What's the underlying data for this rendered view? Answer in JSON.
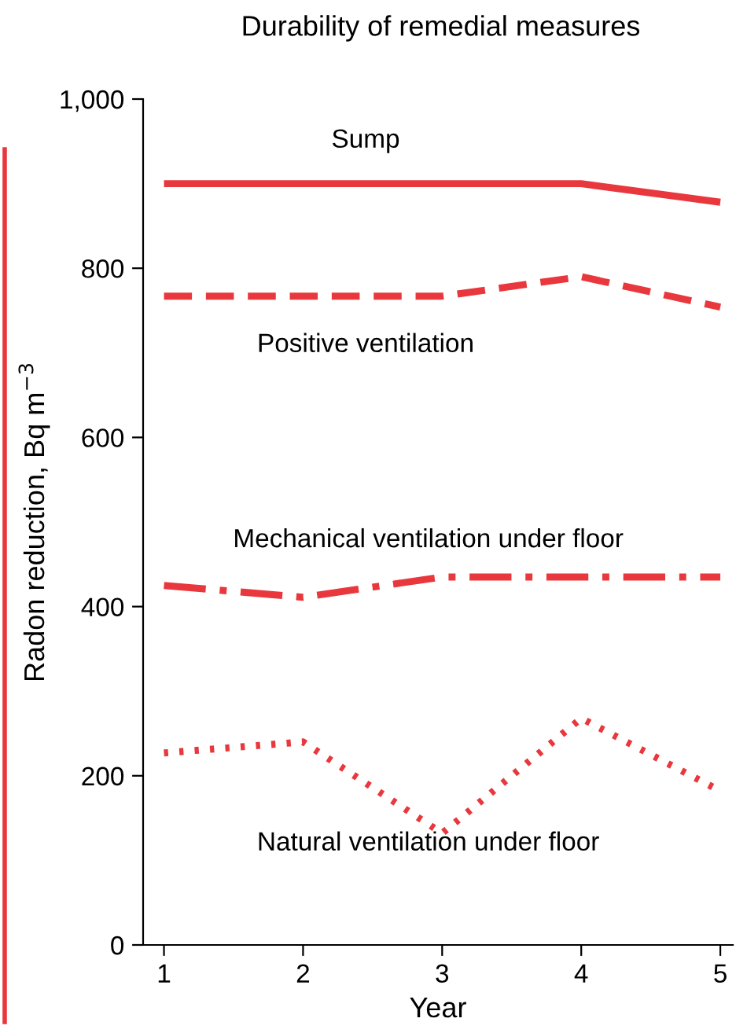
{
  "chart_data": {
    "type": "line",
    "title": "Durability of remedial measures",
    "xlabel": "Year",
    "ylabel": "Radon reduction, Bq m$^{−3}$",
    "x": [
      1,
      2,
      3,
      4,
      5
    ],
    "xlim": [
      0.85,
      5.09
    ],
    "xticks": [
      1,
      2,
      3,
      4,
      5
    ],
    "ylim": [
      0,
      1000
    ],
    "yticks": [
      0,
      200,
      400,
      600,
      800,
      {
        "value": 1000,
        "label": "1,000"
      }
    ],
    "grid": false,
    "legend": false,
    "marker": "none",
    "series": [
      {
        "name": "Sump",
        "color": "#e8383d",
        "line_style": "solid",
        "values": [
          900,
          900,
          900,
          900,
          878
        ]
      },
      {
        "name": "Positive ventilation",
        "color": "#e8383d",
        "line_style": "dashed",
        "values": [
          767,
          767,
          767,
          790,
          754
        ]
      },
      {
        "name": "Mechanical ventilation under floor",
        "color": "#e8383d",
        "line_style": "dashdot",
        "values": [
          425,
          411,
          435,
          435,
          435
        ]
      },
      {
        "name": "Natural ventilation under floor",
        "color": "#e8383d",
        "line_style": "dotted",
        "values": [
          227,
          240,
          132,
          268,
          182
        ]
      }
    ]
  }
}
